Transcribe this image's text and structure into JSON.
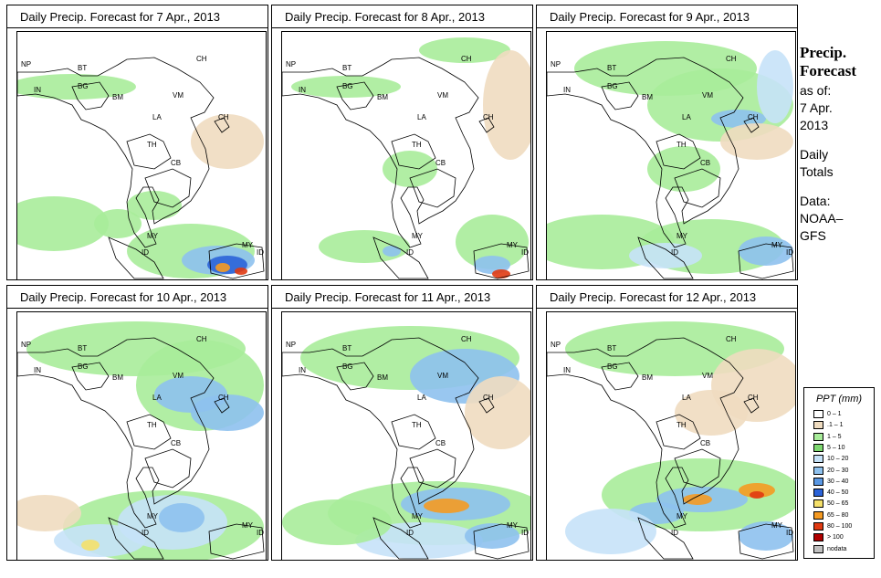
{
  "panels": [
    {
      "title": "Daily Precip. Forecast for  7 Apr., 2013"
    },
    {
      "title": "Daily Precip. Forecast for  8 Apr., 2013"
    },
    {
      "title": "Daily Precip. Forecast for  9 Apr., 2013"
    },
    {
      "title": "Daily Precip. Forecast for  10 Apr., 2013"
    },
    {
      "title": "Daily Precip. Forecast for  11 Apr., 2013"
    },
    {
      "title": "Daily Precip. Forecast for  12 Apr., 2013"
    }
  ],
  "country_labels": [
    "NP",
    "BT",
    "BG",
    "IN",
    "BM",
    "CH",
    "VM",
    "CH",
    "LA",
    "TH",
    "CB",
    "MY",
    "MY",
    "ID",
    "ID"
  ],
  "sidebar": {
    "heading_1": "Precip.",
    "heading_2": "Forecast",
    "as_of_label": "as of:",
    "date_line_1": "7 Apr.",
    "date_line_2": "2013",
    "totals_1": "Daily",
    "totals_2": "Totals",
    "data_1": "Data:",
    "data_2": "NOAA–",
    "data_3": "GFS"
  },
  "legend": {
    "title": "PPT (mm)",
    "items": [
      {
        "label": "0 – 1",
        "color": "#ffffff"
      },
      {
        "label": ".1 – 1",
        "color": "#efdcc0"
      },
      {
        "label": "1 – 5",
        "color": "#a8ec9a"
      },
      {
        "label": "5 – 10",
        "color": "#7ed870"
      },
      {
        "label": "10 – 20",
        "color": "#c6e2f8"
      },
      {
        "label": "20 – 30",
        "color": "#8ec1ee"
      },
      {
        "label": "30 – 40",
        "color": "#5a98e4"
      },
      {
        "label": "40 – 50",
        "color": "#2b63d8"
      },
      {
        "label": "50 – 65",
        "color": "#f5e06a"
      },
      {
        "label": "65 – 80",
        "color": "#f59a22"
      },
      {
        "label": "80 – 100",
        "color": "#e03a12"
      },
      {
        "label": "> 100",
        "color": "#b00000"
      },
      {
        "label": "nodata",
        "color": "#c0c0c0"
      }
    ]
  }
}
